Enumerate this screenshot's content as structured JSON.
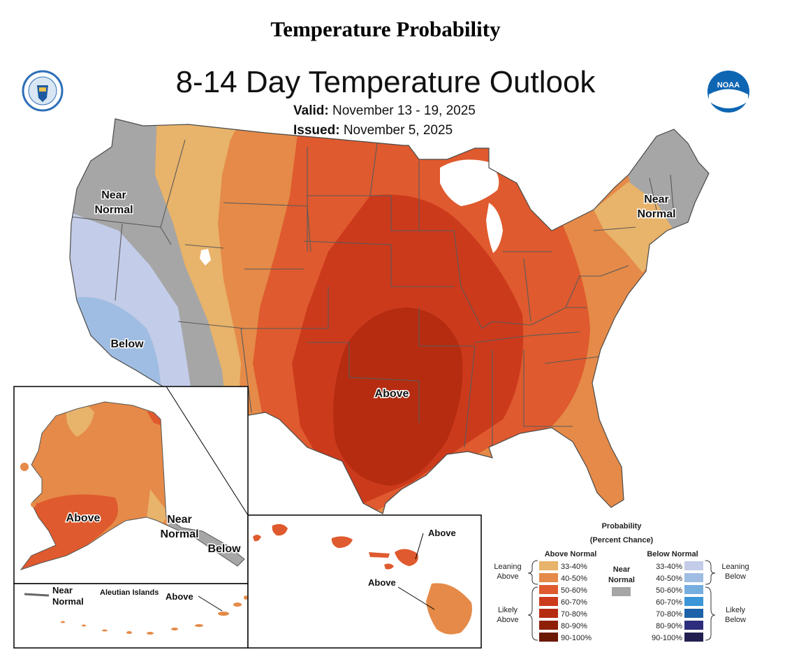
{
  "header": {
    "title": "Temperature Probability",
    "map_title": "8-14 Day Temperature Outlook",
    "valid_label": "Valid:",
    "valid_value": "November 13 - 19, 2025",
    "issued_label": "Issued:",
    "issued_value": "November 5, 2025"
  },
  "logos": [
    "doc-seal-icon",
    "noaa-logo-icon"
  ],
  "noaa_text": "NOAA",
  "map_labels": {
    "conus_near_nw": [
      "Near",
      "Normal"
    ],
    "conus_near_ne": [
      "Near",
      "Normal"
    ],
    "conus_below": "Below",
    "conus_above": "Above",
    "ak_above": "Above",
    "ak_near": [
      "Near",
      "Normal"
    ],
    "ak_below": "Below",
    "aleutian_title": "Aleutian Islands",
    "aleutian_near": [
      "Near",
      "Normal"
    ],
    "aleutian_above": "Above",
    "hi_above_1": "Above",
    "hi_above_2": "Above"
  },
  "legend": {
    "title_1": "Probability",
    "title_2": "(Percent Chance)",
    "above_header": "Above Normal",
    "below_header": "Below Normal",
    "near_label": [
      "Near",
      "Normal"
    ],
    "near_color": "#a6a6a6",
    "leaning_above": [
      "Leaning",
      "Above"
    ],
    "likely_above": [
      "Likely",
      "Above"
    ],
    "leaning_below": [
      "Leaning",
      "Below"
    ],
    "likely_below": [
      "Likely",
      "Below"
    ],
    "above_bins": [
      {
        "range": "33-40%",
        "color": "#e8b36a"
      },
      {
        "range": "40-50%",
        "color": "#e58a48"
      },
      {
        "range": "50-60%",
        "color": "#df5a2e"
      },
      {
        "range": "60-70%",
        "color": "#cc3a1c"
      },
      {
        "range": "70-80%",
        "color": "#b52c10"
      },
      {
        "range": "80-90%",
        "color": "#8f2008"
      },
      {
        "range": "90-100%",
        "color": "#6b1804"
      }
    ],
    "below_bins": [
      {
        "range": "33-40%",
        "color": "#c3cce8"
      },
      {
        "range": "40-50%",
        "color": "#9fbde2"
      },
      {
        "range": "50-60%",
        "color": "#77aee0"
      },
      {
        "range": "60-70%",
        "color": "#3c96d8"
      },
      {
        "range": "70-80%",
        "color": "#1d62a8"
      },
      {
        "range": "80-90%",
        "color": "#2e2c7c"
      },
      {
        "range": "90-100%",
        "color": "#221f50"
      }
    ]
  }
}
